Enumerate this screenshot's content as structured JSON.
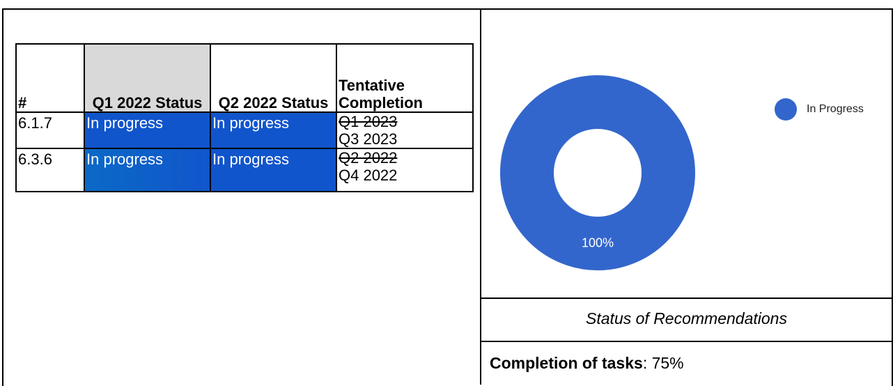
{
  "table": {
    "headers": [
      "#",
      "Q1 2022 Status",
      "Q2 2022 Status",
      "Tentative Completion"
    ],
    "rows": [
      [
        "6.1.7",
        "In progress",
        "In progress",
        {
          "struck": "Q1 2023",
          "current": "Q3 2023"
        }
      ],
      [
        "6.3.6",
        "In progress",
        "In progress",
        {
          "struck": "Q2 2022",
          "current": "Q4 2022"
        }
      ]
    ]
  },
  "chart_data": {
    "type": "pie",
    "categories": [
      "In Progress"
    ],
    "values": [
      100
    ],
    "value_labels": [
      "100%"
    ],
    "colors": [
      "#3366cc"
    ],
    "hole": true,
    "legend": "top-right"
  },
  "caption": "Status of Recommendations",
  "summary": {
    "label": "Completion of tasks",
    "text": ": 75%"
  }
}
